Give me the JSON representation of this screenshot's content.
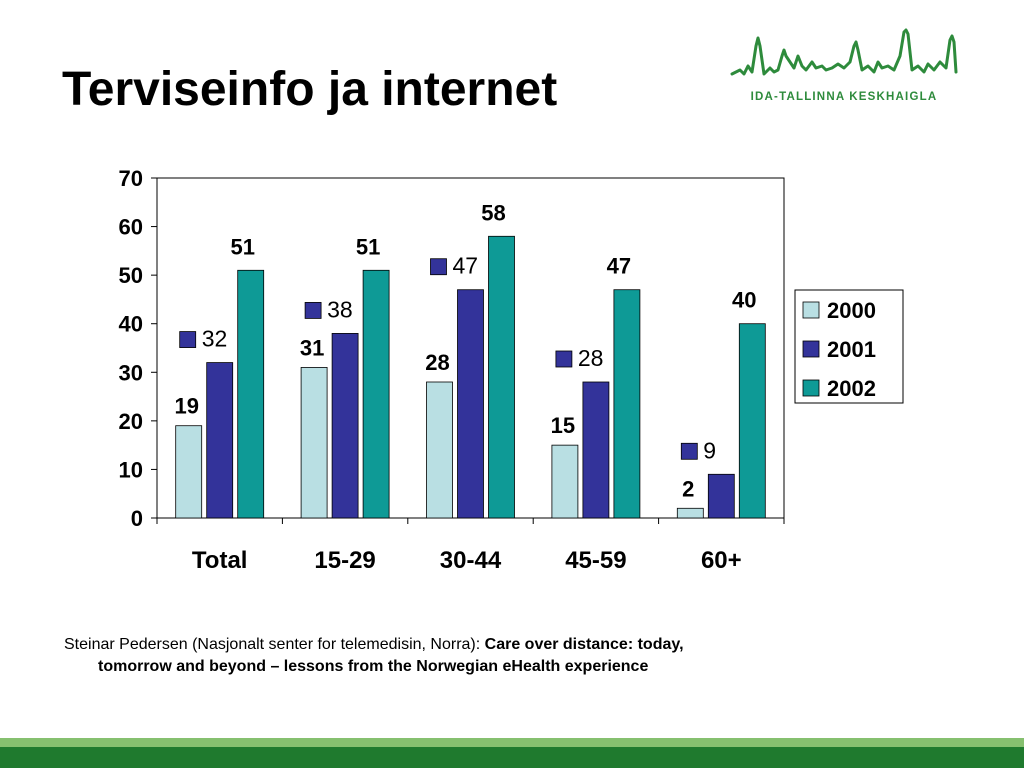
{
  "slide": {
    "title": "Terviseinfo ja internet",
    "logo_text": "IDA-TALLINNA KESKHAIGLA",
    "caption_plain": "Steinar Pedersen (Nasjonalt senter for telemedisin, Norra): ",
    "caption_bold_1": "Care over distance: today,",
    "caption_bold_2": "tomorrow and beyond – lessons from the Norwegian eHealth experience"
  },
  "colors": {
    "s2000": "#b9dfe3",
    "s2001": "#33339a",
    "s2002": "#0e9a96",
    "logo_green": "#2e8b3c",
    "band_light": "#86c06f",
    "band_dark": "#1f7a2e"
  },
  "chart_data": {
    "type": "bar",
    "categories": [
      "Total",
      "15-29",
      "30-44",
      "45-59",
      "60+"
    ],
    "series": [
      {
        "name": "2000",
        "values": [
          19,
          31,
          28,
          15,
          2
        ]
      },
      {
        "name": "2001",
        "values": [
          32,
          38,
          47,
          28,
          9
        ]
      },
      {
        "name": "2002",
        "values": [
          51,
          51,
          58,
          47,
          40
        ]
      }
    ],
    "ylim": [
      0,
      70
    ],
    "yticks": [
      0,
      10,
      20,
      30,
      40,
      50,
      60,
      70
    ],
    "grid": false,
    "legend": "right",
    "data_labels": true
  }
}
